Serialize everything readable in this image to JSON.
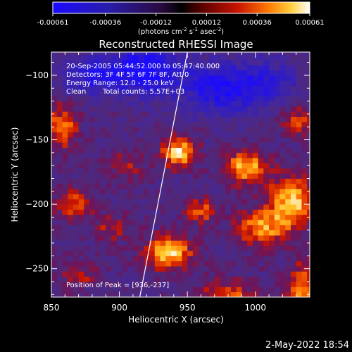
{
  "chart_data": {
    "type": "heatmap",
    "title": "Reconstructed RHESSI Image",
    "xlabel": "Heliocentric X (arcsec)",
    "ylabel": "Heliocentric Y (arcsec)",
    "xlim": [
      850,
      1040
    ],
    "ylim": [
      -272,
      -82
    ],
    "x_ticks": [
      850,
      900,
      950,
      1000
    ],
    "y_ticks": [
      -100,
      -150,
      -200,
      -250
    ],
    "colorbar": {
      "ticks": [
        "-0.00061",
        "-0.00036",
        "-0.00012",
        "0.00012",
        "0.00036",
        "0.00061"
      ],
      "unit_label": "(photons cm",
      "unit_exp1": "-2",
      "unit_mid": " s",
      "unit_exp2": "-1",
      "unit_end": " asec",
      "unit_exp3": "-2",
      "unit_close": ")",
      "range": [
        -0.00061,
        0.00061
      ]
    },
    "annotations": {
      "time": "20-Sep-2005 05:44:52.000 to 05:47:40.000",
      "detectors": "Detectors: 3F 4F 5F 6F 7F 8F, Att 0",
      "energy": "Energy Range: 12.0 - 25.0 keV",
      "method": "Clean",
      "counts": "Total counts: 5.57E+03",
      "peak": "Position of Peak = [936,-237]"
    },
    "limb_line": [
      [
        915,
        -272
      ],
      [
        950,
        -82
      ]
    ],
    "sources": [
      {
        "x": 944,
        "y": -160,
        "amp": 1.0,
        "sx": 9,
        "sy": 8
      },
      {
        "x": 993,
        "y": -171,
        "amp": 0.9,
        "sx": 11,
        "sy": 9
      },
      {
        "x": 936,
        "y": -237,
        "amp": 1.0,
        "sx": 12,
        "sy": 9
      },
      {
        "x": 1027,
        "y": -197,
        "amp": 0.95,
        "sx": 12,
        "sy": 13
      },
      {
        "x": 1005,
        "y": -218,
        "amp": 0.75,
        "sx": 14,
        "sy": 10
      },
      {
        "x": 980,
        "y": -270,
        "amp": 0.6,
        "sx": 15,
        "sy": 8
      },
      {
        "x": 1035,
        "y": -265,
        "amp": 0.75,
        "sx": 8,
        "sy": 14
      },
      {
        "x": 858,
        "y": -140,
        "amp": 0.7,
        "sx": 8,
        "sy": 12
      },
      {
        "x": 867,
        "y": -200,
        "amp": 0.6,
        "sx": 10,
        "sy": 8
      },
      {
        "x": 960,
        "y": -205,
        "amp": 0.6,
        "sx": 8,
        "sy": 7
      },
      {
        "x": 895,
        "y": -218,
        "amp": 0.45,
        "sx": 9,
        "sy": 7
      },
      {
        "x": 1030,
        "y": -135,
        "amp": 0.55,
        "sx": 8,
        "sy": 8
      },
      {
        "x": 905,
        "y": -170,
        "amp": 0.35,
        "sx": 10,
        "sy": 8
      },
      {
        "x": 870,
        "y": -255,
        "amp": 0.4,
        "sx": 10,
        "sy": 7
      },
      {
        "x": 920,
        "y": -95,
        "amp": -0.9,
        "sx": 18,
        "sy": 14
      },
      {
        "x": 880,
        "y": -100,
        "amp": -0.7,
        "sx": 15,
        "sy": 10
      },
      {
        "x": 975,
        "y": -110,
        "amp": -0.8,
        "sx": 20,
        "sy": 14
      },
      {
        "x": 1010,
        "y": -105,
        "amp": -0.5,
        "sx": 15,
        "sy": 12
      }
    ]
  },
  "footer": {
    "date": "2-May-2022 18:54"
  }
}
